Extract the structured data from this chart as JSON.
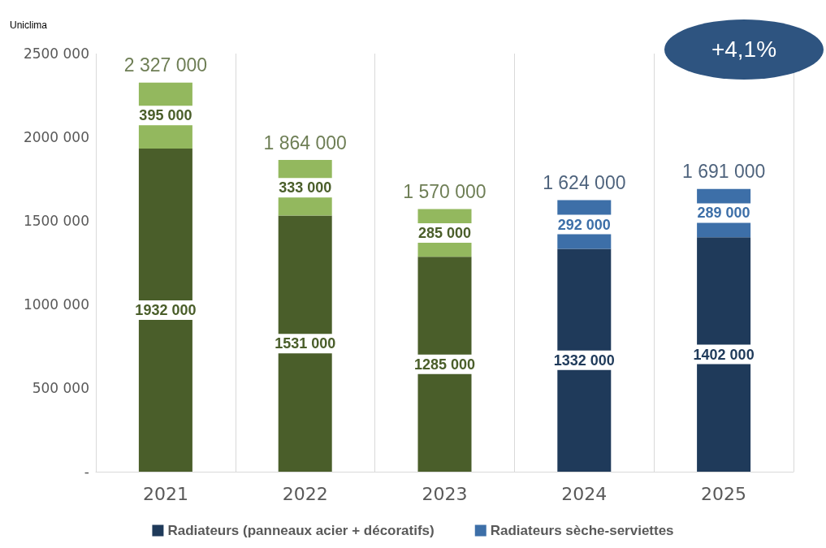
{
  "chart_data": {
    "type": "bar",
    "stacked": true,
    "categories": [
      "2021",
      "2022",
      "2023",
      "2024",
      "2025"
    ],
    "series": [
      {
        "name": "Radiateurs (panneaux acier + décoratifs)",
        "color": "#1f3a5a",
        "colors": [
          "#4a5e2a",
          "#4a5e2a",
          "#4a5e2a",
          "#1f3a5a",
          "#1f3a5a"
        ],
        "values": [
          1932000,
          1531000,
          1285000,
          1332000,
          1402000
        ],
        "value_labels": [
          "1932 000",
          "1531 000",
          "1285 000",
          "1332 000",
          "1402 000"
        ]
      },
      {
        "name": "Radiateurs sèche-serviettes",
        "color": "#3d6fa8",
        "colors": [
          "#93b85e",
          "#93b85e",
          "#93b85e",
          "#3d6fa8",
          "#3d6fa8"
        ],
        "values": [
          395000,
          333000,
          285000,
          292000,
          289000
        ],
        "value_labels": [
          "395 000",
          "333 000",
          "285 000",
          "292 000",
          "289 000"
        ]
      }
    ],
    "totals": [
      "2 327 000",
      "1 864 000",
      "1 570 000",
      "1 624 000",
      "1 691 000"
    ],
    "ylim": [
      0,
      2500000
    ],
    "yticks": [
      {
        "value": 0,
        "label": "-"
      },
      {
        "value": 500000,
        "label": "500 000"
      },
      {
        "value": 1000000,
        "label": "1000 000"
      },
      {
        "value": 1500000,
        "label": "1500 000"
      },
      {
        "value": 2000000,
        "label": "2000 000"
      },
      {
        "value": 2500000,
        "label": "2500 000"
      }
    ],
    "grid": "x",
    "legend": "bottom",
    "annotations": [
      "Uniclima",
      "+4,1%"
    ]
  }
}
